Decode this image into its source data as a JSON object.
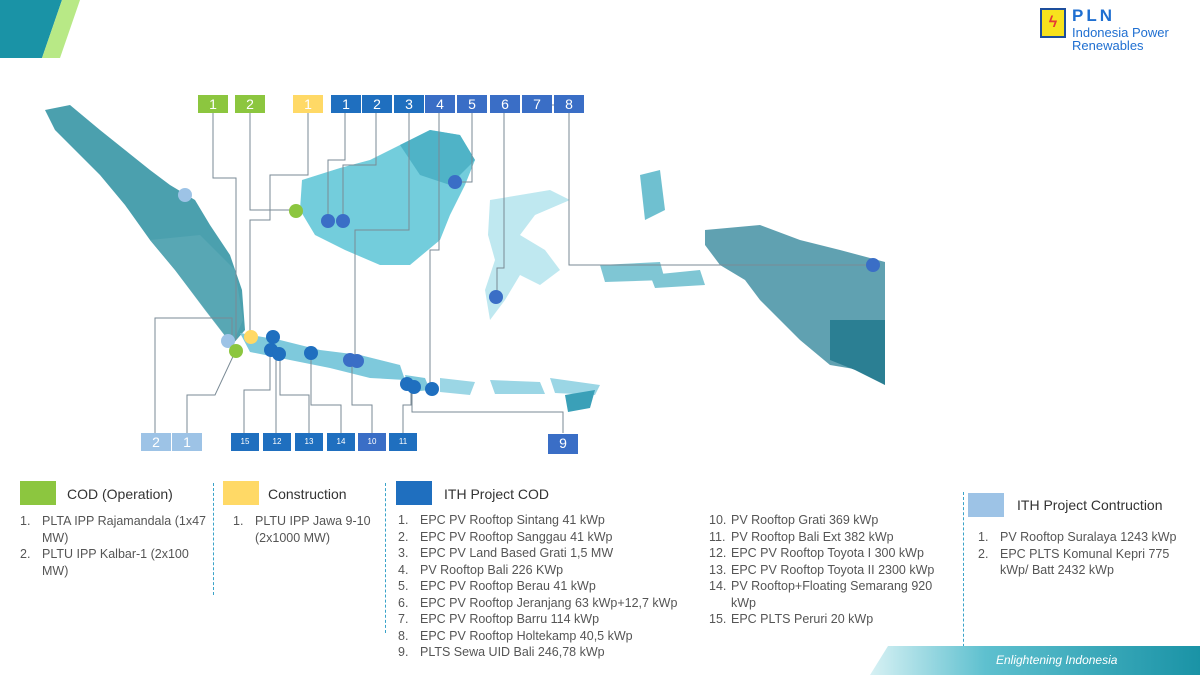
{
  "brand": {
    "name": "PLN",
    "subtitle": "Indonesia Power\nRenewables"
  },
  "footer": {
    "tagline": "Enlightening Indonesia"
  },
  "colors": {
    "cod_operation": "#8cc63f",
    "construction": "#ffd966",
    "ith_cod": "#1f6fbf",
    "ith_construction": "#9dc3e6",
    "teal": "#2aa7b4",
    "dashed": "#3aa3c9"
  },
  "map_tags": {
    "top": [
      {
        "label": "1",
        "type": "cod_operation"
      },
      {
        "label": "2",
        "type": "cod_operation"
      },
      {
        "label": "1",
        "type": "construction"
      },
      {
        "label": "1",
        "type": "ith_cod"
      },
      {
        "label": "2",
        "type": "ith_cod"
      },
      {
        "label": "3",
        "type": "ith_cod"
      },
      {
        "label": "4",
        "type": "ith_cod"
      },
      {
        "label": "5",
        "type": "ith_cod"
      },
      {
        "label": "6",
        "type": "ith_cod"
      },
      {
        "label": "7",
        "type": "ith_cod"
      },
      {
        "label": "8",
        "type": "ith_cod"
      }
    ],
    "bottom": [
      {
        "label": "2",
        "type": "ith_construction"
      },
      {
        "label": "1",
        "type": "ith_construction"
      },
      {
        "label": "15",
        "type": "ith_cod"
      },
      {
        "label": "12",
        "type": "ith_cod"
      },
      {
        "label": "13",
        "type": "ith_cod"
      },
      {
        "label": "14",
        "type": "ith_cod"
      },
      {
        "label": "10",
        "type": "ith_cod"
      },
      {
        "label": "11",
        "type": "ith_cod"
      },
      {
        "label": "9",
        "type": "ith_cod"
      }
    ]
  },
  "legend": {
    "cod": {
      "title": "COD (Operation)",
      "items": [
        "PLTA IPP Rajamandala (1x47 MW)",
        "PLTU IPP Kalbar-1 (2x100 MW)"
      ]
    },
    "construction": {
      "title": "Construction",
      "items": [
        "PLTU IPP Jawa 9-10 (2x1000 MW)"
      ]
    },
    "ith_cod": {
      "title": "ITH Project COD",
      "items": [
        "EPC PV Rooftop Sintang 41 kWp",
        "EPC PV Rooftop Sanggau 41 kWp",
        "EPC PV Land Based Grati 1,5 MW",
        "PV Rooftop Bali 226 KWp",
        "EPC PV Rooftop Berau 41 kWp",
        "EPC PV Rooftop Jeranjang 63 kWp+12,7 kWp",
        "EPC PV Rooftop Barru 114 kWp",
        "EPC PV Rooftop Holtekamp 40,5 kWp",
        "PLTS Sewa UID Bali 246,78 kWp",
        "PV Rooftop Grati 369 kWp",
        "PV Rooftop Bali Ext 382 kWp",
        "EPC PV Rooftop Toyota I 300 kWp",
        "EPC PV Rooftop Toyota II 2300 kWp",
        "PV Rooftop+Floating Semarang 920 kWp",
        "EPC PLTS Peruri 20 kWp"
      ]
    },
    "ith_construction": {
      "title": "ITH Project Contruction",
      "items": [
        "PV Rooftop Suralaya 1243 kWp",
        "EPC PLTS Komunal Kepri 775 kWp/ Batt 2432 kWp"
      ]
    }
  }
}
